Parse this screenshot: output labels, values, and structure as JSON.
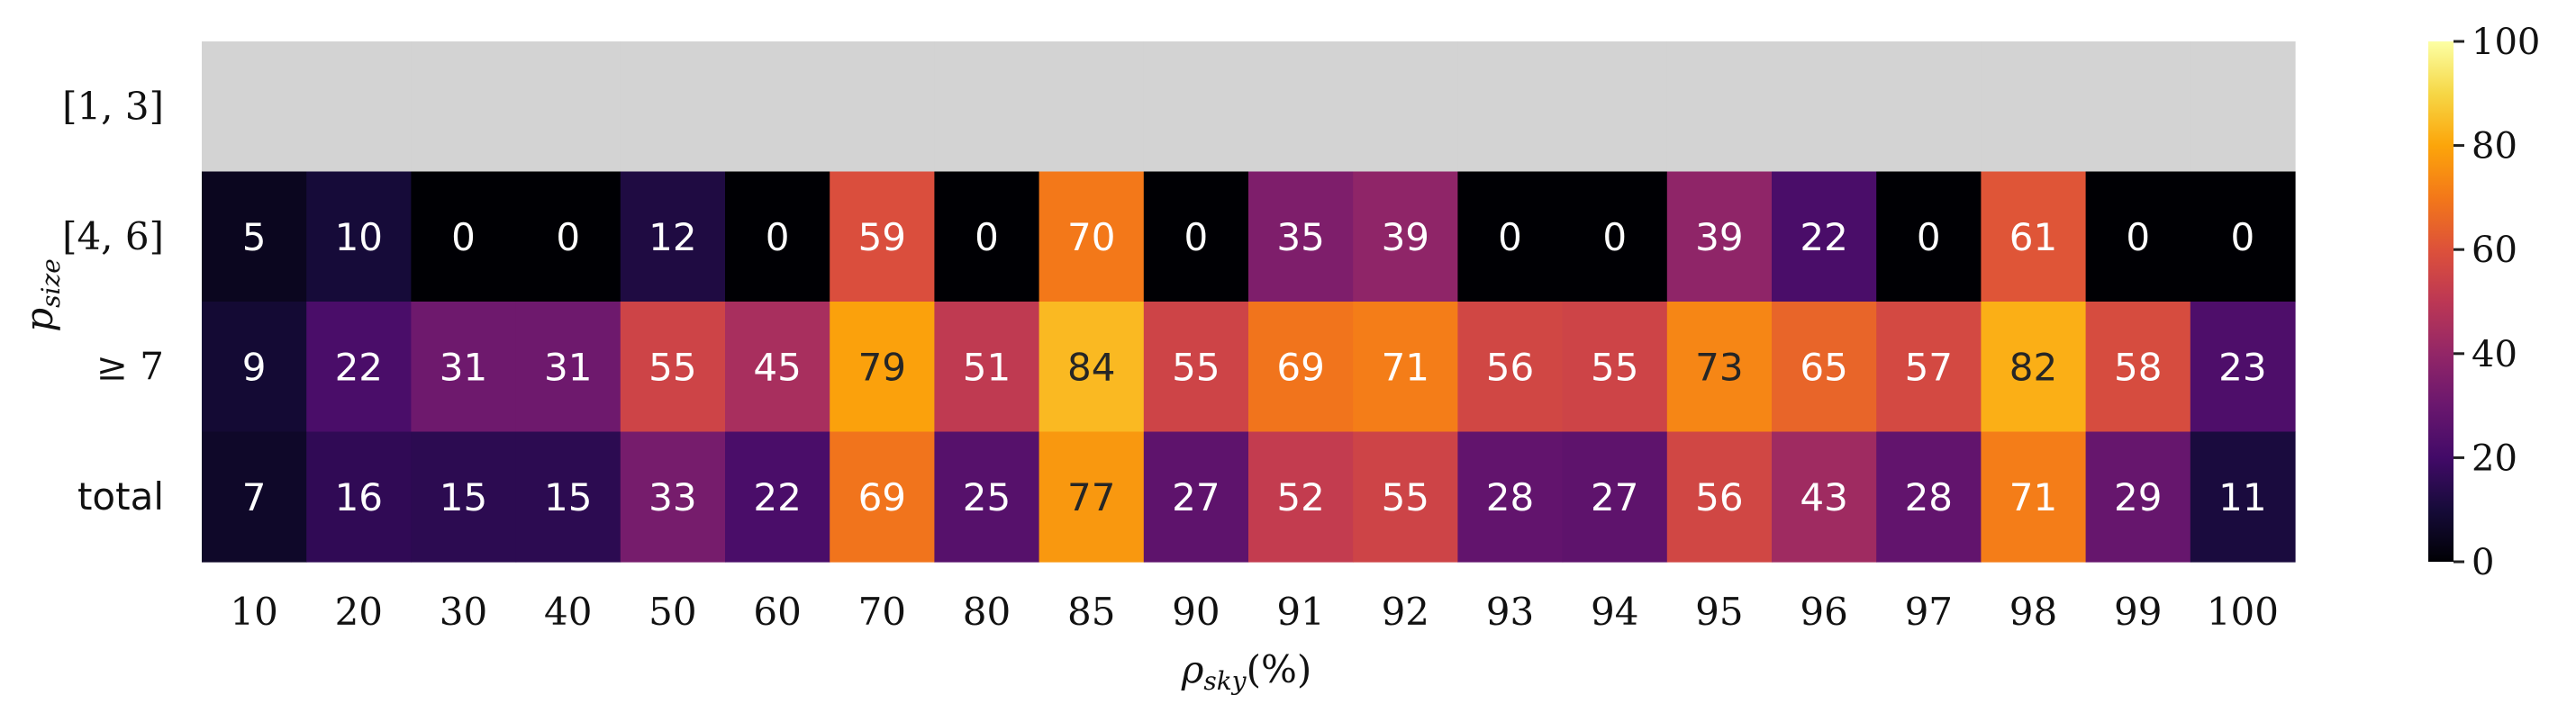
{
  "chart_data": {
    "type": "heatmap",
    "title": "",
    "xlabel": "ρ_sky(%)",
    "ylabel": "p_size",
    "x_categories": [
      "10",
      "20",
      "30",
      "40",
      "50",
      "60",
      "70",
      "80",
      "85",
      "90",
      "91",
      "92",
      "93",
      "94",
      "95",
      "96",
      "97",
      "98",
      "99",
      "100"
    ],
    "y_categories": [
      "[1, 3]",
      "[4, 6]",
      "≥ 7",
      "total"
    ],
    "values": [
      [
        null,
        null,
        null,
        null,
        null,
        null,
        null,
        null,
        null,
        null,
        null,
        null,
        null,
        null,
        null,
        null,
        null,
        null,
        null,
        null
      ],
      [
        5,
        10,
        0,
        0,
        12,
        0,
        59,
        0,
        70,
        0,
        35,
        39,
        0,
        0,
        39,
        22,
        0,
        61,
        0,
        0
      ],
      [
        9,
        22,
        31,
        31,
        55,
        45,
        79,
        51,
        84,
        55,
        69,
        71,
        56,
        55,
        73,
        65,
        57,
        82,
        58,
        23
      ],
      [
        7,
        16,
        15,
        15,
        33,
        22,
        69,
        25,
        77,
        27,
        52,
        55,
        28,
        27,
        56,
        43,
        28,
        71,
        29,
        11
      ]
    ],
    "colormap": "inferno",
    "missing_color": "#d3d3d3",
    "vmin": 0,
    "vmax": 100,
    "colorbar_ticks": [
      0,
      20,
      40,
      60,
      80,
      100
    ]
  }
}
